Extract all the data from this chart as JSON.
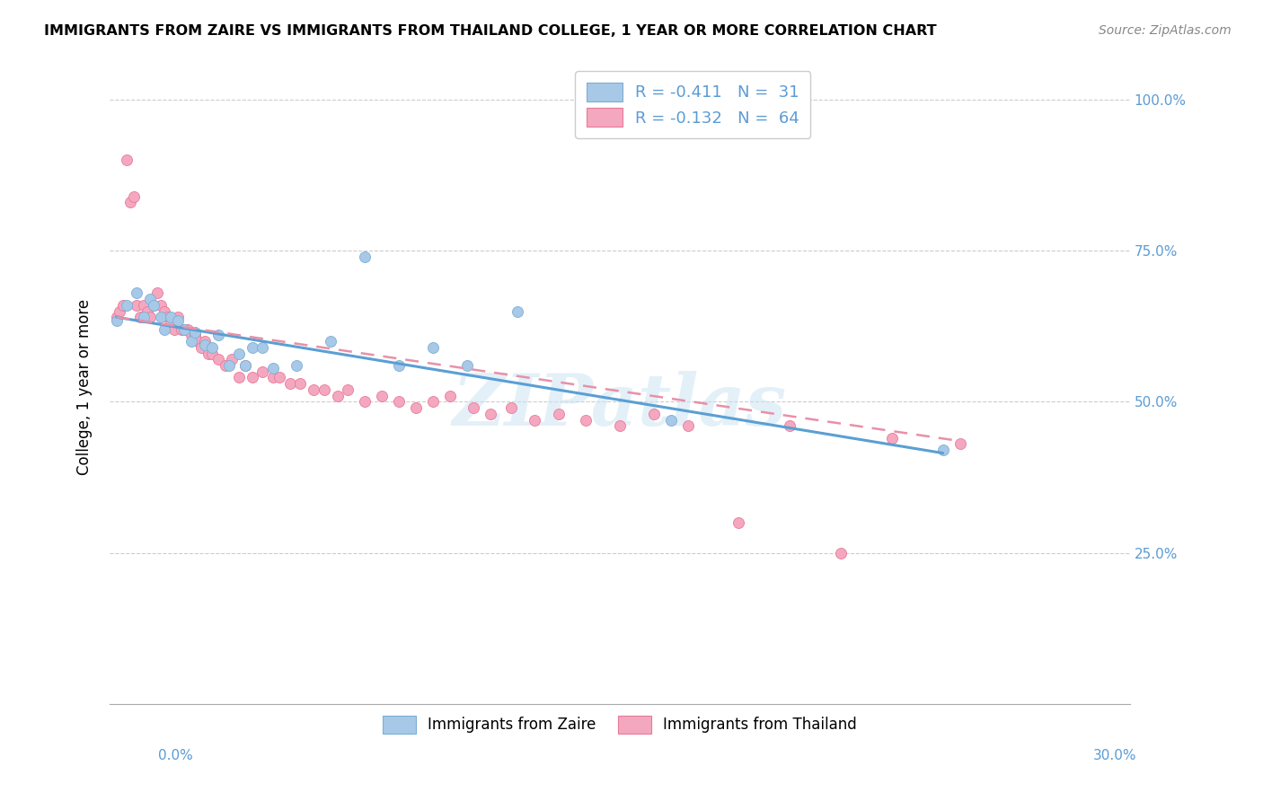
{
  "title": "IMMIGRANTS FROM ZAIRE VS IMMIGRANTS FROM THAILAND COLLEGE, 1 YEAR OR MORE CORRELATION CHART",
  "source": "Source: ZipAtlas.com",
  "ylabel": "College, 1 year or more",
  "legend_label_zaire": "Immigrants from Zaire",
  "legend_label_thailand": "Immigrants from Thailand",
  "color_zaire": "#a8c8e8",
  "color_thailand": "#f4a8c0",
  "edge_zaire": "#7aafd4",
  "edge_thailand": "#e8799a",
  "trendline_zaire_color": "#5a9fd4",
  "trendline_thailand_color": "#e890a8",
  "xlim": [
    0.0,
    0.3
  ],
  "ylim": [
    0.0,
    1.05
  ],
  "zaire_x": [
    0.002,
    0.005,
    0.008,
    0.01,
    0.012,
    0.013,
    0.015,
    0.016,
    0.018,
    0.02,
    0.022,
    0.024,
    0.025,
    0.028,
    0.03,
    0.032,
    0.035,
    0.038,
    0.04,
    0.042,
    0.045,
    0.048,
    0.055,
    0.065,
    0.075,
    0.085,
    0.095,
    0.105,
    0.12,
    0.165,
    0.245
  ],
  "zaire_y": [
    0.635,
    0.66,
    0.68,
    0.64,
    0.67,
    0.66,
    0.64,
    0.62,
    0.64,
    0.635,
    0.62,
    0.6,
    0.615,
    0.595,
    0.59,
    0.61,
    0.56,
    0.58,
    0.56,
    0.59,
    0.59,
    0.555,
    0.56,
    0.6,
    0.74,
    0.56,
    0.59,
    0.56,
    0.65,
    0.47,
    0.42
  ],
  "thailand_x": [
    0.002,
    0.003,
    0.004,
    0.005,
    0.006,
    0.007,
    0.008,
    0.009,
    0.01,
    0.011,
    0.012,
    0.013,
    0.014,
    0.015,
    0.016,
    0.017,
    0.018,
    0.019,
    0.02,
    0.021,
    0.022,
    0.023,
    0.024,
    0.025,
    0.026,
    0.027,
    0.028,
    0.029,
    0.03,
    0.032,
    0.034,
    0.036,
    0.038,
    0.04,
    0.042,
    0.045,
    0.048,
    0.05,
    0.053,
    0.056,
    0.06,
    0.063,
    0.067,
    0.07,
    0.075,
    0.08,
    0.085,
    0.09,
    0.095,
    0.1,
    0.107,
    0.112,
    0.118,
    0.125,
    0.132,
    0.14,
    0.15,
    0.16,
    0.17,
    0.185,
    0.2,
    0.215,
    0.23,
    0.25
  ],
  "thailand_y": [
    0.64,
    0.65,
    0.66,
    0.9,
    0.83,
    0.84,
    0.66,
    0.64,
    0.66,
    0.65,
    0.64,
    0.66,
    0.68,
    0.66,
    0.65,
    0.64,
    0.63,
    0.62,
    0.64,
    0.62,
    0.62,
    0.62,
    0.61,
    0.61,
    0.6,
    0.59,
    0.6,
    0.58,
    0.58,
    0.57,
    0.56,
    0.57,
    0.54,
    0.56,
    0.54,
    0.55,
    0.54,
    0.54,
    0.53,
    0.53,
    0.52,
    0.52,
    0.51,
    0.52,
    0.5,
    0.51,
    0.5,
    0.49,
    0.5,
    0.51,
    0.49,
    0.48,
    0.49,
    0.47,
    0.48,
    0.47,
    0.46,
    0.48,
    0.46,
    0.3,
    0.46,
    0.25,
    0.44,
    0.43
  ],
  "zaire_trendline_x": [
    0.002,
    0.245
  ],
  "zaire_trendline_y": [
    0.64,
    0.415
  ],
  "thailand_trendline_x": [
    0.002,
    0.25
  ],
  "thailand_trendline_y": [
    0.64,
    0.435
  ]
}
